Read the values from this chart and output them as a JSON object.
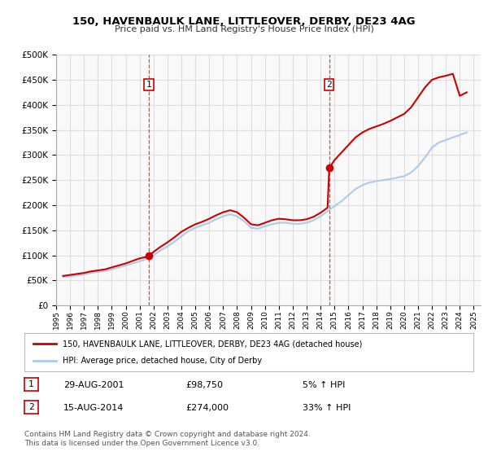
{
  "title": "150, HAVENBAULK LANE, LITTLEOVER, DERBY, DE23 4AG",
  "subtitle": "Price paid vs. HM Land Registry's House Price Index (HPI)",
  "ylabel": "",
  "ylim": [
    0,
    500000
  ],
  "yticks": [
    0,
    50000,
    100000,
    150000,
    200000,
    250000,
    300000,
    350000,
    400000,
    450000,
    500000
  ],
  "bg_color": "#ffffff",
  "plot_bg_color": "#f9f9f9",
  "grid_color": "#dddddd",
  "sale_marker_color": "#cc0000",
  "hpi_line_color": "#aaccee",
  "price_line_color": "#cc0000",
  "marker1_date": 2001.66,
  "marker1_price": 98750,
  "marker1_label": "1",
  "marker2_date": 2014.62,
  "marker2_price": 274000,
  "marker2_label": "2",
  "legend_line1": "150, HAVENBAULK LANE, LITTLEOVER, DERBY, DE23 4AG (detached house)",
  "legend_line2": "HPI: Average price, detached house, City of Derby",
  "table_row1": [
    "1",
    "29-AUG-2001",
    "£98,750",
    "5% ↑ HPI"
  ],
  "table_row2": [
    "2",
    "15-AUG-2014",
    "£274,000",
    "33% ↑ HPI"
  ],
  "footnote": "Contains HM Land Registry data © Crown copyright and database right 2024.\nThis data is licensed under the Open Government Licence v3.0.",
  "xmin": 1995.0,
  "xmax": 2025.5,
  "hpi_data": {
    "years": [
      1995.5,
      1996.0,
      1996.5,
      1997.0,
      1997.5,
      1998.0,
      1998.5,
      1999.0,
      1999.5,
      2000.0,
      2000.5,
      2001.0,
      2001.5,
      2002.0,
      2002.5,
      2003.0,
      2003.5,
      2004.0,
      2004.5,
      2005.0,
      2005.5,
      2006.0,
      2006.5,
      2007.0,
      2007.5,
      2008.0,
      2008.5,
      2009.0,
      2009.5,
      2010.0,
      2010.5,
      2011.0,
      2011.5,
      2012.0,
      2012.5,
      2013.0,
      2013.5,
      2014.0,
      2014.5,
      2015.0,
      2015.5,
      2016.0,
      2016.5,
      2017.0,
      2017.5,
      2018.0,
      2018.5,
      2019.0,
      2019.5,
      2020.0,
      2020.5,
      2021.0,
      2021.5,
      2022.0,
      2022.5,
      2023.0,
      2023.5,
      2024.0,
      2024.5
    ],
    "values": [
      57000,
      58000,
      60000,
      62000,
      65000,
      67000,
      69000,
      72000,
      76000,
      80000,
      84000,
      88000,
      93000,
      100000,
      110000,
      118000,
      127000,
      138000,
      148000,
      155000,
      160000,
      165000,
      172000,
      178000,
      182000,
      178000,
      168000,
      155000,
      153000,
      158000,
      162000,
      165000,
      165000,
      163000,
      163000,
      165000,
      170000,
      178000,
      188000,
      198000,
      208000,
      220000,
      232000,
      240000,
      245000,
      248000,
      250000,
      252000,
      255000,
      258000,
      265000,
      278000,
      295000,
      315000,
      325000,
      330000,
      335000,
      340000,
      345000
    ]
  },
  "price_data": {
    "years": [
      1995.5,
      1996.0,
      1996.5,
      1997.0,
      1997.5,
      1998.0,
      1998.5,
      1999.0,
      1999.5,
      2000.0,
      2000.5,
      2001.0,
      2001.5,
      2001.66,
      2002.0,
      2002.5,
      2003.0,
      2003.5,
      2004.0,
      2004.5,
      2005.0,
      2005.5,
      2006.0,
      2006.5,
      2007.0,
      2007.5,
      2008.0,
      2008.5,
      2009.0,
      2009.5,
      2010.0,
      2010.5,
      2011.0,
      2011.5,
      2012.0,
      2012.5,
      2013.0,
      2013.5,
      2014.0,
      2014.5,
      2014.62,
      2015.0,
      2015.5,
      2016.0,
      2016.5,
      2017.0,
      2017.5,
      2018.0,
      2018.5,
      2019.0,
      2019.5,
      2020.0,
      2020.5,
      2021.0,
      2021.5,
      2022.0,
      2022.5,
      2023.0,
      2023.5,
      2024.0,
      2024.5
    ],
    "values": [
      59000,
      61000,
      63000,
      65000,
      68000,
      70000,
      72000,
      76000,
      80000,
      84000,
      89000,
      94000,
      97000,
      98750,
      107000,
      117000,
      126000,
      136000,
      147000,
      155000,
      162000,
      167000,
      173000,
      180000,
      186000,
      190000,
      186000,
      175000,
      162000,
      160000,
      165000,
      170000,
      173000,
      172000,
      170000,
      170000,
      172000,
      177000,
      185000,
      195000,
      274000,
      290000,
      305000,
      320000,
      335000,
      345000,
      352000,
      357000,
      362000,
      368000,
      375000,
      382000,
      395000,
      415000,
      435000,
      450000,
      455000,
      458000,
      462000,
      418000,
      425000
    ]
  }
}
